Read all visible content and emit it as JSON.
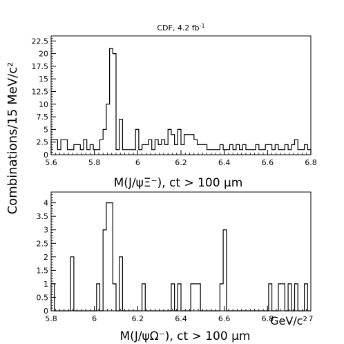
{
  "chart_data": [
    {
      "type": "histogram",
      "title": "CDF, 4.2 fb",
      "title_sup": "-1",
      "xlabel": "M(J/ψΞ⁻), ct > 100 μm",
      "ylabel": "Combinations/15 MeV/c²",
      "xlim": [
        5.6,
        6.8
      ],
      "ylim": [
        0,
        23.5
      ],
      "bin_width": 0.015,
      "x_ticks": [
        "5.6",
        "5.8",
        "6",
        "6.2",
        "6.4",
        "6.6",
        "6.8"
      ],
      "y_ticks": [
        "0",
        "2.5",
        "5",
        "7.5",
        "10",
        "12.5",
        "15",
        "17.5",
        "20",
        "22.5"
      ],
      "values": [
        3,
        3,
        1,
        3,
        3,
        1,
        1,
        2,
        2,
        1,
        3,
        1,
        2,
        1,
        1,
        3,
        5,
        10,
        21,
        20,
        1,
        7,
        1,
        1,
        1,
        1,
        5,
        1,
        2,
        2,
        3,
        1,
        3,
        2,
        3,
        2,
        5,
        4,
        2,
        5,
        2,
        4,
        4,
        4,
        3,
        2,
        2,
        2,
        1,
        1,
        1,
        1,
        2,
        1,
        1,
        2,
        1,
        2,
        1,
        2,
        1,
        1,
        1,
        2,
        1,
        1,
        2,
        2,
        1,
        2,
        1,
        1,
        2,
        1,
        2,
        3,
        1,
        1,
        2,
        1
      ]
    },
    {
      "type": "histogram",
      "xlabel": "M(J/ψΩ⁻), ct > 100 μm",
      "x_unit_label": "GeV/c²",
      "xlim": [
        5.8,
        7.0
      ],
      "ylim": [
        0,
        4.4
      ],
      "bin_width": 0.015,
      "x_ticks": [
        "5.8",
        "6",
        "6.2",
        "6.4",
        "6.6",
        "6.8",
        "7"
      ],
      "y_ticks": [
        "0",
        "0.5",
        "1",
        "1.5",
        "2",
        "2.5",
        "3",
        "3.5",
        "4"
      ],
      "values": [
        1,
        0,
        0,
        0,
        0,
        0,
        2,
        0,
        0,
        0,
        0,
        0,
        0,
        0,
        1,
        0,
        3,
        4,
        4,
        1,
        0,
        2,
        0,
        0,
        0,
        0,
        0,
        0,
        1,
        0,
        0,
        0,
        0,
        0,
        0,
        0,
        0,
        1,
        0,
        1,
        0,
        0,
        0,
        1,
        1,
        1,
        0,
        0,
        0,
        0,
        0,
        0,
        1,
        3,
        0,
        0,
        0,
        0,
        0,
        0,
        0,
        0,
        0,
        0,
        0,
        0,
        0,
        1,
        0,
        0,
        1,
        1,
        0,
        1,
        0,
        1,
        0,
        0,
        1,
        0
      ]
    }
  ]
}
